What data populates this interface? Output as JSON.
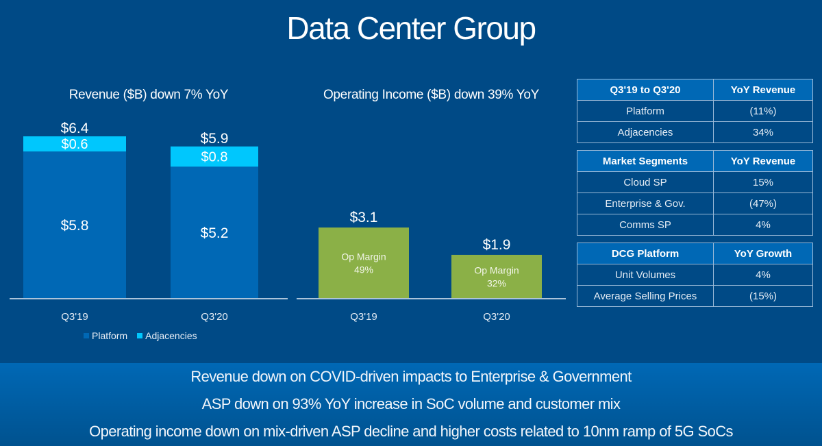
{
  "title": "Data Center Group",
  "colors": {
    "background": "#004a86",
    "platform": "#0068b5",
    "adjacencies": "#00c7fd",
    "op_income": "#8bb047",
    "banner": "#0068b5"
  },
  "chart_data": [
    {
      "type": "bar",
      "stacked": true,
      "title": "Revenue ($B) down 7% YoY",
      "categories": [
        "Q3'19",
        "Q3'20"
      ],
      "series": [
        {
          "name": "Platform",
          "values": [
            5.8,
            5.2
          ],
          "labels": [
            "$5.8",
            "$5.2"
          ]
        },
        {
          "name": "Adjacencies",
          "values": [
            0.6,
            0.8
          ],
          "labels": [
            "$0.6",
            "$0.8"
          ]
        }
      ],
      "totals": [
        6.4,
        5.9
      ],
      "total_labels": [
        "$6.4",
        "$5.9"
      ],
      "legend": [
        "Platform",
        "Adjacencies"
      ],
      "legend_position": "bottom",
      "xlabel": "",
      "ylabel": "",
      "ylim": [
        0,
        6.4
      ],
      "grid": false
    },
    {
      "type": "bar",
      "title": "Operating Income ($B) down 39% YoY",
      "categories": [
        "Q3'19",
        "Q3'20"
      ],
      "values": [
        3.1,
        1.9
      ],
      "value_labels": [
        "$3.1",
        "$1.9"
      ],
      "inner_labels": [
        {
          "line1": "Op Margin",
          "line2": "49%"
        },
        {
          "line1": "Op Margin",
          "line2": "32%"
        }
      ],
      "xlabel": "",
      "ylabel": "",
      "ylim": [
        0,
        6.4
      ],
      "grid": false
    }
  ],
  "tables": [
    {
      "headers": [
        "Q3'19 to Q3'20",
        "YoY Revenue"
      ],
      "rows": [
        [
          "Platform",
          "(11%)"
        ],
        [
          "Adjacencies",
          "34%"
        ]
      ]
    },
    {
      "headers": [
        "Market Segments",
        "YoY Revenue"
      ],
      "rows": [
        [
          "Cloud SP",
          "15%"
        ],
        [
          "Enterprise & Gov.",
          "(47%)"
        ],
        [
          "Comms SP",
          "4%"
        ]
      ]
    },
    {
      "headers": [
        "DCG Platform",
        "YoY Growth"
      ],
      "rows": [
        [
          "Unit Volumes",
          "4%"
        ],
        [
          "Average Selling Prices",
          "(15%)"
        ]
      ]
    }
  ],
  "notes": [
    "Revenue down on COVID-driven impacts to Enterprise & Government",
    "ASP down on 93% YoY increase in SoC volume and customer mix",
    "Operating income down on mix-driven ASP decline and higher costs related to 10nm ramp of 5G SoCs"
  ]
}
